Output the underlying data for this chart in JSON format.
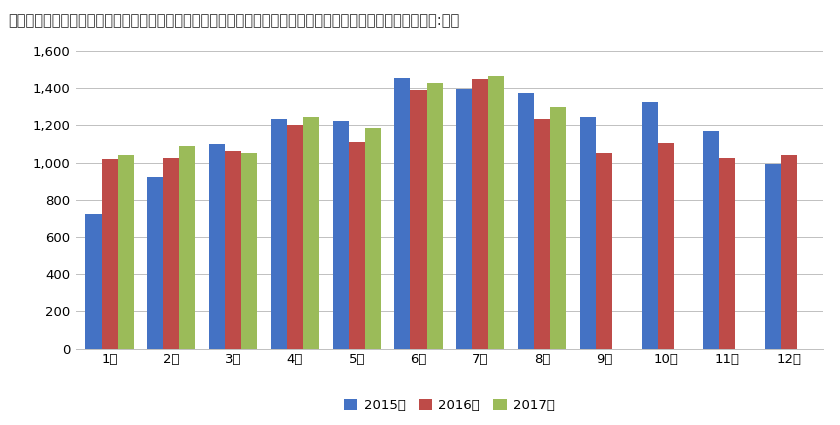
{
  "title": "ドラッグストアにおけるインバウンド消費の購買件数　（インバウンド店舗１店舗あたりレシート枚数／単位:枚）",
  "months": [
    "1月",
    "2月",
    "3月",
    "4月",
    "5月",
    "6月",
    "7月",
    "8月",
    "9月",
    "10月",
    "11月",
    "12月"
  ],
  "series": {
    "2015年": [
      725,
      920,
      1100,
      1235,
      1225,
      1455,
      1395,
      1375,
      1245,
      1325,
      1170,
      990
    ],
    "2016年": [
      1020,
      1025,
      1060,
      1200,
      1110,
      1390,
      1450,
      1235,
      1050,
      1105,
      1025,
      1040
    ],
    "2017年": [
      1040,
      1090,
      1050,
      1245,
      1185,
      1430,
      1465,
      1300,
      null,
      null,
      null,
      null
    ]
  },
  "colors": {
    "2015年": "#4472C4",
    "2016年": "#BE4B48",
    "2017年": "#9BBB59"
  },
  "ylim": [
    0,
    1600
  ],
  "yticks": [
    0,
    200,
    400,
    600,
    800,
    1000,
    1200,
    1400,
    1600
  ],
  "background_color": "#FFFFFF",
  "grid_color": "#C0C0C0",
  "title_fontsize": 10.5,
  "legend_fontsize": 9.5,
  "tick_fontsize": 9.5,
  "bar_width": 0.26
}
